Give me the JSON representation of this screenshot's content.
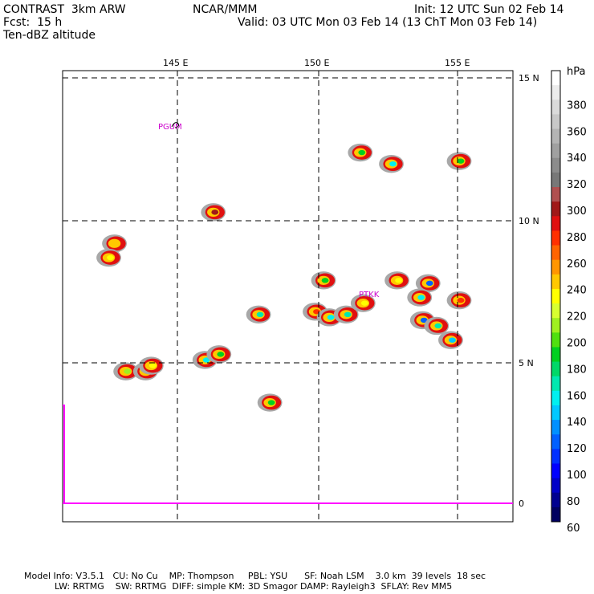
{
  "header": {
    "model_title": "CONTRAST  3km ARW",
    "institution": "NCAR/MMM",
    "init_time": "Init: 12 UTC Sun 02 Feb 14",
    "forecast_hour": "Fcst:  15 h",
    "valid_time": "Valid: 03 UTC Mon 03 Feb 14 (13 ChT Mon 03 Feb 14)",
    "field_name": "Ten-dBZ altitude"
  },
  "map": {
    "lon_labels": [
      "145 E",
      "150 E",
      "155 E"
    ],
    "lat_labels": [
      "15 N",
      "10 N",
      "5 N",
      "0"
    ],
    "stations": [
      {
        "code": "PGUM",
        "lon": 144.8,
        "lat": 13.5
      },
      {
        "code": "PTKK",
        "lon": 151.85,
        "lat": 7.45
      }
    ]
  },
  "colorbar": {
    "unit": "hPa",
    "labels": [
      "380",
      "360",
      "340",
      "320",
      "300",
      "280",
      "260",
      "240",
      "220",
      "200",
      "180",
      "160",
      "140",
      "120",
      "100",
      "80",
      "60"
    ],
    "colors": [
      "#ffffff",
      "#ececec",
      "#dadada",
      "#c8c8c8",
      "#b4b4b4",
      "#a0a0a0",
      "#8c8c8c",
      "#787878",
      "#b05050",
      "#a01818",
      "#e01010",
      "#ff3000",
      "#ff6400",
      "#ff9600",
      "#ffc800",
      "#ffff00",
      "#d8ff30",
      "#a0f020",
      "#50e010",
      "#00d020",
      "#00d868",
      "#00e8b0",
      "#00f0f0",
      "#00c8ff",
      "#0090ff",
      "#0060ff",
      "#0030ff",
      "#0000ff",
      "#0000c8",
      "#000090",
      "#000060"
    ]
  },
  "chart_data": {
    "type": "heatmap",
    "field": "Ten-dBZ altitude",
    "unit": "hPa",
    "lon_range": [
      141,
      157
    ],
    "lat_range": [
      -0.6,
      15.6
    ],
    "grid": true,
    "cells": [
      {
        "lon": 143.2,
        "lat": 4.7,
        "value": 220
      },
      {
        "lon": 143.9,
        "lat": 4.7,
        "value": 190
      },
      {
        "lon": 144.1,
        "lat": 4.9,
        "value": 230
      },
      {
        "lon": 142.8,
        "lat": 9.2,
        "value": 250
      },
      {
        "lon": 142.6,
        "lat": 8.7,
        "value": 240
      },
      {
        "lon": 146.3,
        "lat": 10.3,
        "value": 330
      },
      {
        "lon": 146.0,
        "lat": 5.1,
        "value": 150
      },
      {
        "lon": 146.5,
        "lat": 5.3,
        "value": 200
      },
      {
        "lon": 147.9,
        "lat": 6.7,
        "value": 170
      },
      {
        "lon": 148.3,
        "lat": 3.6,
        "value": 200
      },
      {
        "lon": 149.9,
        "lat": 6.8,
        "value": 300
      },
      {
        "lon": 150.2,
        "lat": 7.9,
        "value": 200
      },
      {
        "lon": 150.4,
        "lat": 6.6,
        "value": 150
      },
      {
        "lon": 151.0,
        "lat": 6.7,
        "value": 170
      },
      {
        "lon": 151.6,
        "lat": 7.1,
        "value": 240
      },
      {
        "lon": 152.8,
        "lat": 7.9,
        "value": 230
      },
      {
        "lon": 153.9,
        "lat": 7.8,
        "value": 120
      },
      {
        "lon": 153.7,
        "lat": 6.5,
        "value": 110
      },
      {
        "lon": 154.2,
        "lat": 6.3,
        "value": 180
      },
      {
        "lon": 154.7,
        "lat": 5.8,
        "value": 130
      },
      {
        "lon": 155.0,
        "lat": 7.2,
        "value": 290
      },
      {
        "lon": 152.6,
        "lat": 12.0,
        "value": 150
      },
      {
        "lon": 155.0,
        "lat": 12.1,
        "value": 190
      },
      {
        "lon": 151.5,
        "lat": 12.4,
        "value": 190
      },
      {
        "lon": 153.6,
        "lat": 7.3,
        "value": 150
      }
    ]
  },
  "footer": {
    "line1": "Model Info: V3.5.1   CU: No Cu    MP: Thompson     PBL: YSU      SF: Noah LSM    3.0 km  39 levels  18 sec",
    "line2": "LW: RRTMG    SW: RRTMG  DIFF: simple KM: 3D Smagor DAMP: Rayleigh3  SFLAY: Rev MM5"
  }
}
